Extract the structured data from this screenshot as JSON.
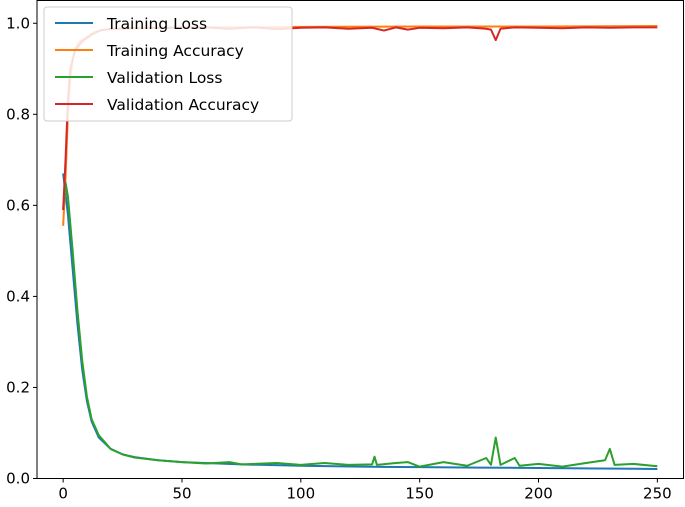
{
  "chart_data": {
    "type": "line",
    "title": "",
    "xlabel": "",
    "ylabel": "",
    "xlim": [
      -11,
      261
    ],
    "ylim": [
      0.0,
      1.05
    ],
    "x_ticks": [
      0,
      50,
      100,
      150,
      200,
      250
    ],
    "y_ticks": [
      0.0,
      0.2,
      0.4,
      0.6,
      0.8,
      1.0
    ],
    "grid": false,
    "legend_position": "top-left",
    "series": [
      {
        "name": "Training Loss",
        "color": "#1f77b4",
        "points": [
          [
            0,
            0.67
          ],
          [
            2,
            0.58
          ],
          [
            4,
            0.46
          ],
          [
            6,
            0.34
          ],
          [
            8,
            0.24
          ],
          [
            10,
            0.17
          ],
          [
            12,
            0.125
          ],
          [
            15,
            0.09
          ],
          [
            20,
            0.065
          ],
          [
            25,
            0.053
          ],
          [
            30,
            0.047
          ],
          [
            40,
            0.04
          ],
          [
            50,
            0.036
          ],
          [
            75,
            0.031
          ],
          [
            100,
            0.028
          ],
          [
            125,
            0.026
          ],
          [
            150,
            0.025
          ],
          [
            175,
            0.024
          ],
          [
            200,
            0.023
          ],
          [
            225,
            0.022
          ],
          [
            250,
            0.021
          ]
        ]
      },
      {
        "name": "Training Accuracy",
        "color": "#ff7f0e",
        "points": [
          [
            0,
            0.555
          ],
          [
            1,
            0.66
          ],
          [
            2,
            0.8
          ],
          [
            3,
            0.88
          ],
          [
            4,
            0.92
          ],
          [
            5,
            0.945
          ],
          [
            7,
            0.96
          ],
          [
            10,
            0.97
          ],
          [
            13,
            0.98
          ],
          [
            16,
            0.985
          ],
          [
            20,
            0.988
          ],
          [
            30,
            0.99
          ],
          [
            50,
            0.991
          ],
          [
            100,
            0.992
          ],
          [
            150,
            0.993
          ],
          [
            200,
            0.993
          ],
          [
            250,
            0.994
          ]
        ]
      },
      {
        "name": "Validation Loss",
        "color": "#2ca02c",
        "points": [
          [
            0,
            0.59
          ],
          [
            1,
            0.65
          ],
          [
            2,
            0.62
          ],
          [
            4,
            0.5
          ],
          [
            6,
            0.37
          ],
          [
            8,
            0.26
          ],
          [
            10,
            0.18
          ],
          [
            12,
            0.13
          ],
          [
            15,
            0.095
          ],
          [
            20,
            0.065
          ],
          [
            25,
            0.053
          ],
          [
            30,
            0.046
          ],
          [
            40,
            0.04
          ],
          [
            50,
            0.036
          ],
          [
            60,
            0.033
          ],
          [
            70,
            0.036
          ],
          [
            75,
            0.031
          ],
          [
            90,
            0.034
          ],
          [
            100,
            0.03
          ],
          [
            110,
            0.034
          ],
          [
            120,
            0.03
          ],
          [
            130,
            0.031
          ],
          [
            131,
            0.048
          ],
          [
            132,
            0.03
          ],
          [
            140,
            0.034
          ],
          [
            145,
            0.036
          ],
          [
            150,
            0.026
          ],
          [
            160,
            0.036
          ],
          [
            170,
            0.028
          ],
          [
            178,
            0.045
          ],
          [
            180,
            0.03
          ],
          [
            182,
            0.09
          ],
          [
            184,
            0.03
          ],
          [
            190,
            0.045
          ],
          [
            192,
            0.028
          ],
          [
            200,
            0.032
          ],
          [
            210,
            0.026
          ],
          [
            220,
            0.034
          ],
          [
            228,
            0.04
          ],
          [
            230,
            0.065
          ],
          [
            232,
            0.03
          ],
          [
            240,
            0.032
          ],
          [
            250,
            0.027
          ]
        ]
      },
      {
        "name": "Validation Accuracy",
        "color": "#d62728",
        "points": [
          [
            0,
            0.59
          ],
          [
            1,
            0.7
          ],
          [
            2,
            0.83
          ],
          [
            3,
            0.9
          ],
          [
            5,
            0.94
          ],
          [
            8,
            0.96
          ],
          [
            12,
            0.975
          ],
          [
            16,
            0.985
          ],
          [
            20,
            0.987
          ],
          [
            30,
            0.989
          ],
          [
            50,
            0.99
          ],
          [
            60,
            0.991
          ],
          [
            70,
            0.988
          ],
          [
            80,
            0.991
          ],
          [
            90,
            0.987
          ],
          [
            100,
            0.99
          ],
          [
            110,
            0.991
          ],
          [
            120,
            0.988
          ],
          [
            130,
            0.99
          ],
          [
            135,
            0.984
          ],
          [
            140,
            0.991
          ],
          [
            145,
            0.986
          ],
          [
            150,
            0.99
          ],
          [
            160,
            0.989
          ],
          [
            170,
            0.991
          ],
          [
            178,
            0.988
          ],
          [
            180,
            0.986
          ],
          [
            182,
            0.963
          ],
          [
            184,
            0.988
          ],
          [
            190,
            0.991
          ],
          [
            200,
            0.99
          ],
          [
            210,
            0.989
          ],
          [
            220,
            0.991
          ],
          [
            230,
            0.99
          ],
          [
            240,
            0.991
          ],
          [
            250,
            0.991
          ]
        ]
      }
    ]
  }
}
